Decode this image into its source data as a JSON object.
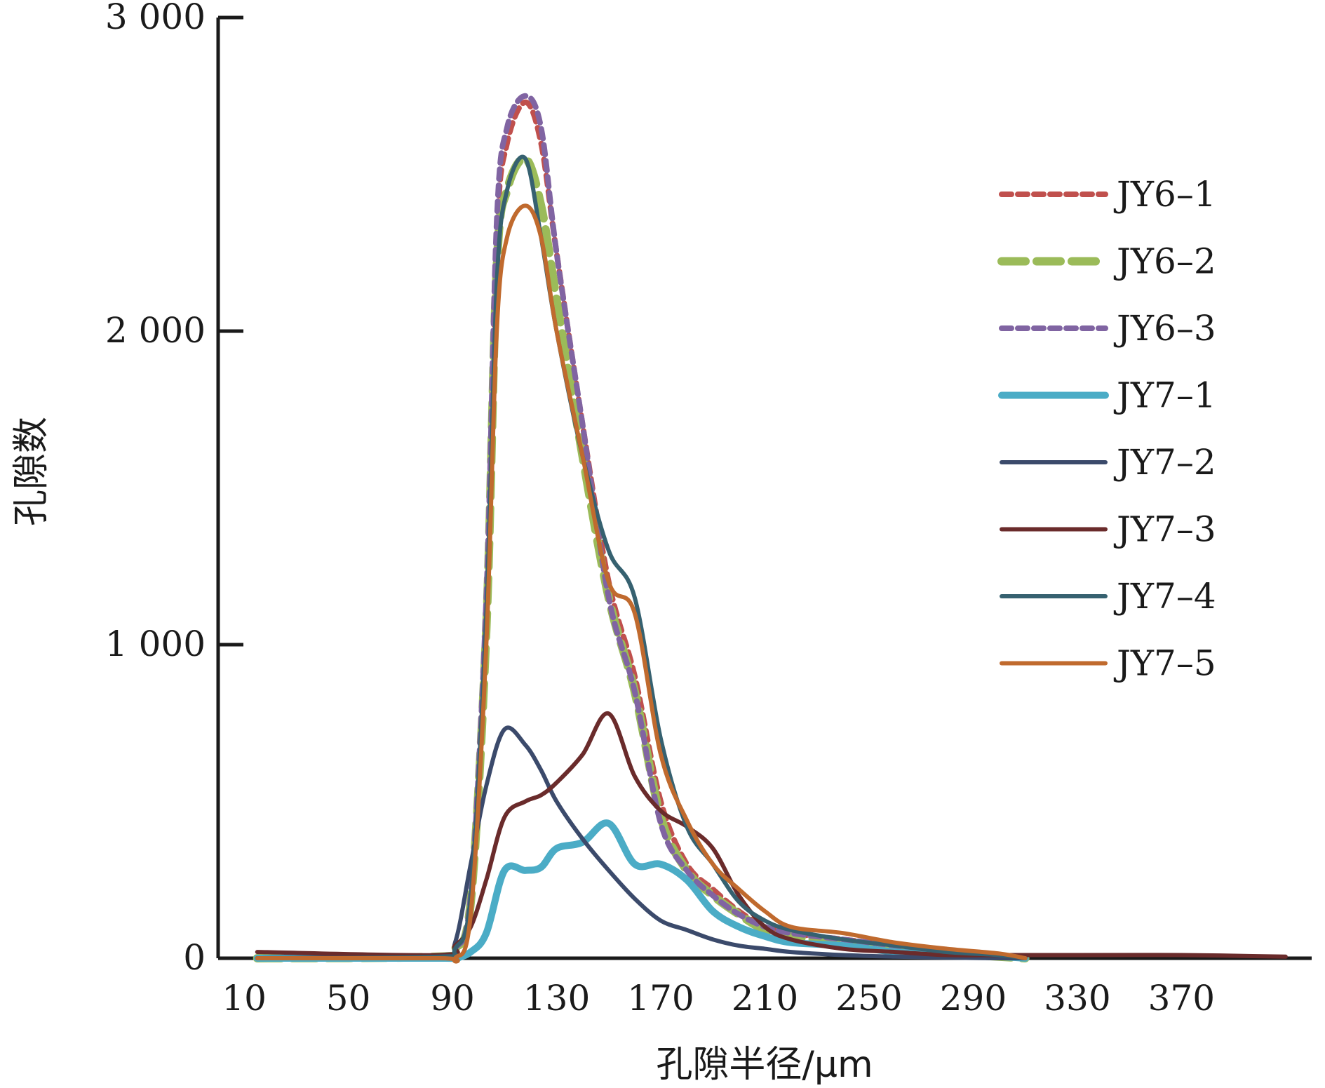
{
  "chart_data": {
    "type": "line",
    "xlabel": "孔隙半径/μm",
    "ylabel": "孔隙数",
    "xlim": [
      0,
      420
    ],
    "ylim": [
      0,
      3000
    ],
    "x_ticks": [
      10,
      50,
      90,
      130,
      170,
      210,
      250,
      290,
      330,
      370
    ],
    "x_tick_labels": [
      "10",
      "50",
      "90",
      "130",
      "170",
      "210",
      "250",
      "290",
      "330",
      "370"
    ],
    "y_ticks": [
      0,
      1000,
      2000,
      3000
    ],
    "y_tick_labels": [
      "0",
      "1 000",
      "2 000",
      "3 000"
    ],
    "grid": false,
    "legend_position": "right",
    "series": [
      {
        "name": "JY6–1",
        "color": "#c0504d",
        "style": "dotted",
        "x": [
          15,
          85,
          91,
          97,
          103,
          107,
          111,
          118,
          124,
          130,
          140,
          150,
          160,
          170,
          180,
          190,
          200,
          210,
          220,
          240,
          260,
          280,
          300,
          310
        ],
        "y": [
          0,
          5,
          30,
          180,
          1100,
          2300,
          2600,
          2730,
          2600,
          2250,
          1700,
          1200,
          900,
          500,
          300,
          220,
          150,
          100,
          80,
          60,
          40,
          20,
          10,
          0
        ]
      },
      {
        "name": "JY6–2",
        "color": "#9bbb59",
        "style": "dashed",
        "x": [
          15,
          85,
          91,
          97,
          103,
          107,
          111,
          118,
          124,
          130,
          140,
          150,
          160,
          170,
          180,
          190,
          200,
          210,
          220,
          240,
          260,
          280,
          300,
          310
        ],
        "y": [
          0,
          5,
          30,
          180,
          1050,
          2200,
          2450,
          2550,
          2400,
          2100,
          1600,
          1150,
          850,
          450,
          280,
          200,
          140,
          90,
          70,
          50,
          30,
          15,
          5,
          0
        ]
      },
      {
        "name": "JY6–3",
        "color": "#8064a2",
        "style": "dotted",
        "x": [
          15,
          85,
          91,
          97,
          103,
          107,
          111,
          118,
          124,
          130,
          140,
          150,
          160,
          170,
          180,
          190,
          200,
          210,
          220,
          240,
          260,
          280,
          300,
          310
        ],
        "y": [
          0,
          5,
          30,
          200,
          1150,
          2350,
          2650,
          2750,
          2650,
          2250,
          1700,
          1150,
          850,
          430,
          280,
          200,
          140,
          100,
          80,
          60,
          40,
          20,
          10,
          0
        ]
      },
      {
        "name": "JY7–1",
        "color": "#4bacc6",
        "style": "solid",
        "x": [
          15,
          85,
          91,
          97,
          103,
          110,
          118,
          124,
          130,
          140,
          150,
          160,
          170,
          180,
          190,
          200,
          210,
          220,
          240,
          260,
          280,
          300,
          310
        ],
        "y": [
          0,
          0,
          0,
          20,
          80,
          280,
          280,
          290,
          350,
          370,
          430,
          300,
          300,
          250,
          150,
          100,
          70,
          50,
          40,
          20,
          10,
          5,
          0
        ]
      },
      {
        "name": "JY7–2",
        "color": "#3b4a6b",
        "style": "solid",
        "x": [
          15,
          85,
          91,
          97,
          103,
          110,
          118,
          124,
          130,
          140,
          150,
          160,
          170,
          180,
          190,
          200,
          210,
          220,
          240,
          260,
          280,
          300,
          310
        ],
        "y": [
          0,
          10,
          50,
          300,
          550,
          730,
          680,
          600,
          500,
          380,
          280,
          190,
          120,
          90,
          60,
          40,
          30,
          20,
          10,
          5,
          2,
          0,
          0
        ]
      },
      {
        "name": "JY7–3",
        "color": "#6a2b2b",
        "style": "solid",
        "x": [
          15,
          85,
          91,
          97,
          103,
          110,
          118,
          124,
          130,
          140,
          150,
          160,
          170,
          180,
          190,
          200,
          210,
          220,
          240,
          260,
          280,
          300,
          330,
          370,
          410
        ],
        "y": [
          20,
          10,
          40,
          100,
          250,
          450,
          500,
          520,
          560,
          650,
          780,
          580,
          470,
          420,
          350,
          200,
          100,
          60,
          30,
          20,
          10,
          10,
          10,
          10,
          5
        ]
      },
      {
        "name": "JY7–4",
        "color": "#366170",
        "style": "solid",
        "x": [
          15,
          85,
          91,
          97,
          103,
          107,
          111,
          118,
          124,
          130,
          140,
          150,
          160,
          170,
          180,
          190,
          200,
          210,
          220,
          240,
          260,
          280,
          300,
          310
        ],
        "y": [
          0,
          5,
          30,
          200,
          1100,
          2150,
          2450,
          2550,
          2300,
          2000,
          1600,
          1300,
          1150,
          700,
          420,
          300,
          180,
          120,
          90,
          60,
          40,
          20,
          10,
          0
        ]
      },
      {
        "name": "JY7–5",
        "color": "#c06a2e",
        "style": "solid",
        "x": [
          15,
          85,
          91,
          97,
          103,
          107,
          111,
          118,
          124,
          130,
          140,
          150,
          160,
          170,
          180,
          190,
          200,
          210,
          220,
          240,
          260,
          280,
          300,
          310
        ],
        "y": [
          0,
          0,
          0,
          140,
          1000,
          2000,
          2300,
          2400,
          2300,
          2000,
          1600,
          1200,
          1100,
          650,
          440,
          300,
          220,
          150,
          100,
          80,
          50,
          30,
          15,
          0
        ]
      }
    ]
  }
}
